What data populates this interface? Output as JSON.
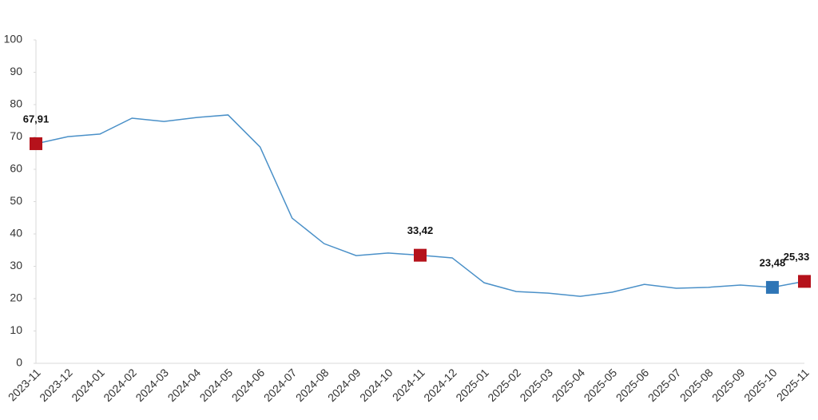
{
  "chart_data": {
    "type": "line",
    "categories": [
      "2023-11",
      "2023-12",
      "2024-01",
      "2024-02",
      "2024-03",
      "2024-04",
      "2024-05",
      "2024-06",
      "2024-07",
      "2024-08",
      "2024-09",
      "2024-10",
      "2024-11",
      "2024-12",
      "2025-01",
      "2025-02",
      "2025-03",
      "2025-04",
      "2025-05",
      "2025-06",
      "2025-07",
      "2025-08",
      "2025-09",
      "2025-10",
      "2025-11"
    ],
    "series": [
      {
        "color": "#4a90c8",
        "values": [
          67.91,
          70.1,
          70.9,
          75.8,
          74.8,
          76.0,
          76.8,
          66.9,
          44.9,
          37.0,
          33.3,
          34.1,
          33.42,
          32.6,
          24.9,
          22.2,
          21.7,
          20.7,
          22.0,
          24.4,
          23.2,
          23.5,
          24.2,
          23.48,
          25.33
        ],
        "value_labels": [
          "67,91",
          null,
          null,
          null,
          null,
          null,
          null,
          null,
          null,
          null,
          null,
          null,
          "33,42",
          null,
          null,
          null,
          null,
          null,
          null,
          null,
          null,
          null,
          null,
          "23,48",
          "25,33"
        ],
        "marker_colors": [
          "#b5121b",
          null,
          null,
          null,
          null,
          null,
          null,
          null,
          null,
          null,
          null,
          null,
          "#b5121b",
          null,
          null,
          null,
          null,
          null,
          null,
          null,
          null,
          null,
          null,
          "#2e75b6",
          "#b5121b"
        ]
      }
    ],
    "ylim": [
      0,
      100
    ],
    "yticks": [
      0,
      10,
      20,
      30,
      40,
      50,
      60,
      70,
      80,
      90,
      100
    ],
    "grid": false
  }
}
